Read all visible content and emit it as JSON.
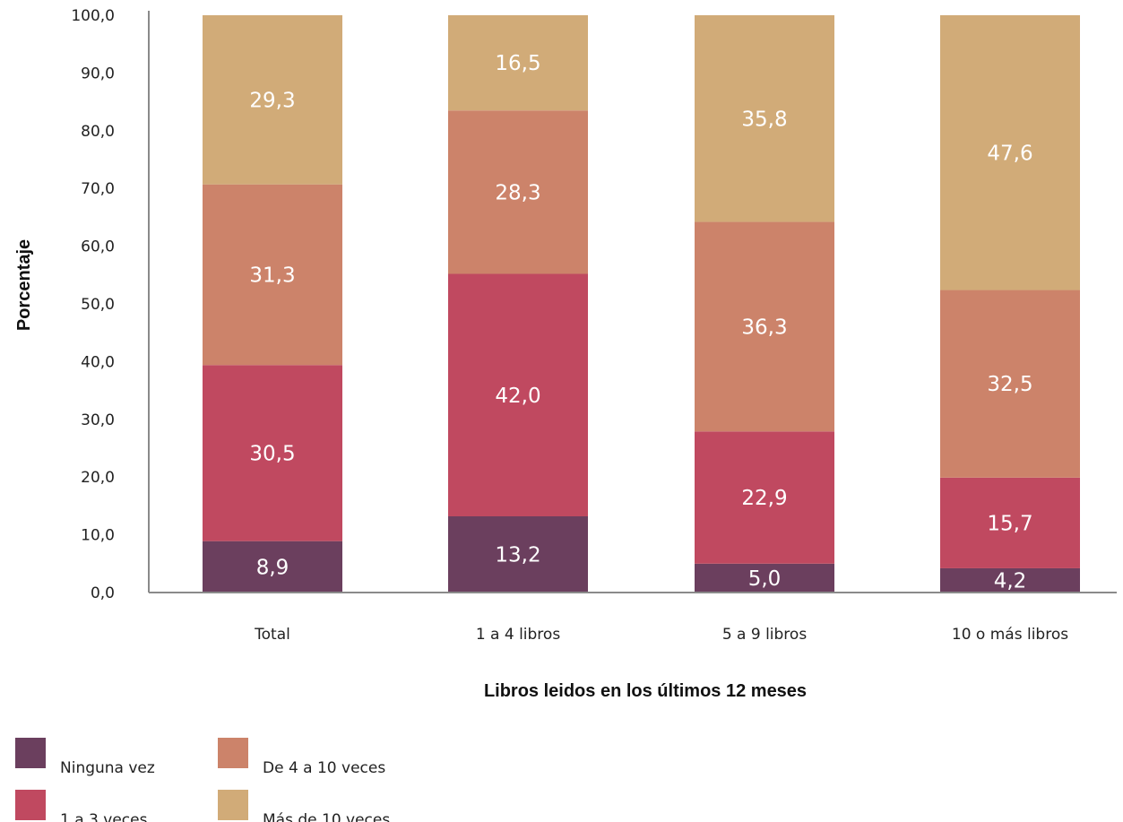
{
  "chart_data": {
    "type": "bar",
    "stacked": true,
    "categories": [
      "Total",
      "1 a 4 libros",
      "5 a 9 libros",
      "10 o más libros"
    ],
    "series": [
      {
        "name": "Ninguna vez",
        "values": [
          8.9,
          13.2,
          5.0,
          4.2
        ],
        "labels": [
          "8,9",
          "13,2",
          "5,0",
          "4,2"
        ],
        "color": "#6b3f5e"
      },
      {
        "name": "1 a 3 veces",
        "values": [
          30.5,
          42.0,
          22.9,
          15.7
        ],
        "labels": [
          "30,5",
          "42,0",
          "22,9",
          "15,7"
        ],
        "color": "#c04960"
      },
      {
        "name": "De 4 a 10 veces",
        "values": [
          31.3,
          28.3,
          36.3,
          32.5
        ],
        "labels": [
          "31,3",
          "28,3",
          "36,3",
          "32,5"
        ],
        "color": "#cc836a"
      },
      {
        "name": "Más de 10 veces",
        "values": [
          29.3,
          16.5,
          35.8,
          47.6
        ],
        "labels": [
          "29,3",
          "16,5",
          "35,8",
          "47,6"
        ],
        "color": "#d1ab78"
      }
    ],
    "yticks": [
      "0,0",
      "10,0",
      "20,0",
      "30,0",
      "40,0",
      "50,0",
      "60,0",
      "70,0",
      "80,0",
      "90,0",
      "100,0"
    ],
    "ylim": [
      0,
      100
    ],
    "xlabel": "Libros leidos en los últimos 12 meses",
    "ylabel": "Porcentaje",
    "legend_position": "bottom-left",
    "grid": false
  }
}
